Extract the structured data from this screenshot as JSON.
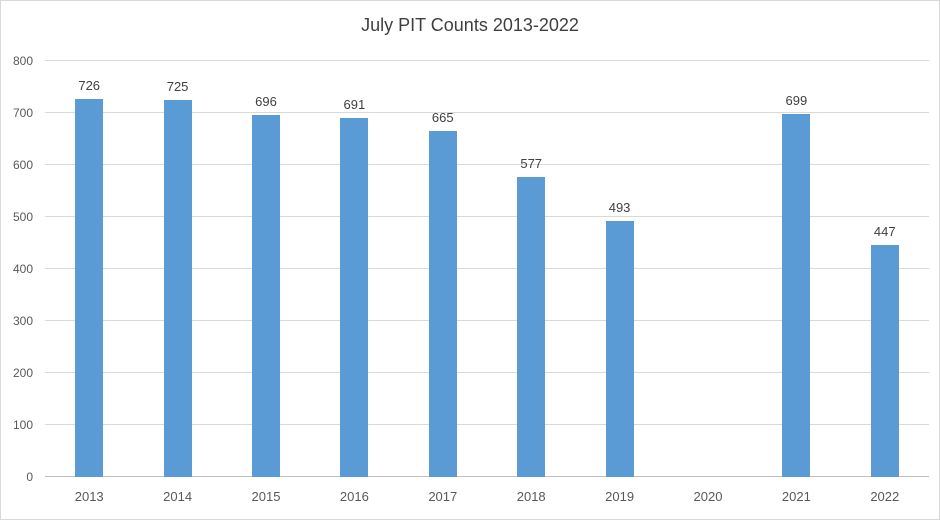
{
  "chart_data": {
    "type": "bar",
    "title": "July PIT Counts 2013-2022",
    "categories": [
      "2013",
      "2014",
      "2015",
      "2016",
      "2017",
      "2018",
      "2019",
      "2020",
      "2021",
      "2022"
    ],
    "values": [
      726,
      725,
      696,
      691,
      665,
      577,
      493,
      null,
      699,
      447
    ],
    "xlabel": "",
    "ylabel": "",
    "ylim": [
      0,
      800
    ],
    "yticks": [
      0,
      100,
      200,
      300,
      400,
      500,
      600,
      700,
      800
    ],
    "grid": true,
    "legend": false,
    "bar_color": "#5b9bd5",
    "gridline_color": "#d9d9d9",
    "title_color": "#3f3f3f",
    "axis_label_color": "#595959",
    "data_label_color": "#404040"
  }
}
